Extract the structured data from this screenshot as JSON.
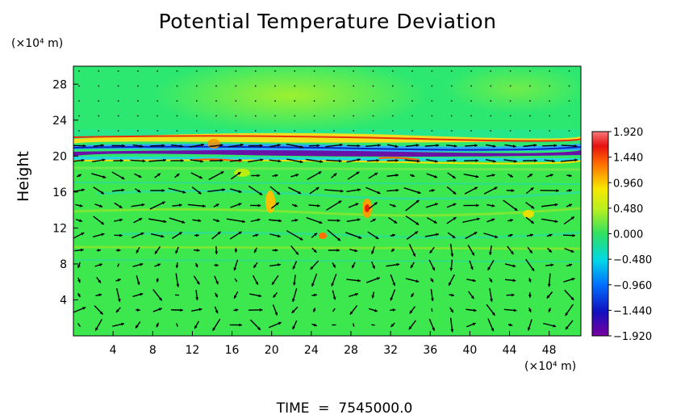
{
  "chart_data": {
    "type": "heatmap",
    "title": "Potential Temperature Deviation",
    "ylabel": "Height",
    "x_unit": "(×10⁴ m)",
    "y_unit": "(×10⁴ m)",
    "x_ticks": [
      4,
      8,
      12,
      16,
      20,
      24,
      28,
      32,
      36,
      40,
      44,
      48
    ],
    "y_ticks": [
      4,
      8,
      12,
      16,
      20,
      24,
      28
    ],
    "xlim": [
      0,
      51.2
    ],
    "ylim": [
      0,
      30
    ],
    "colorbar": {
      "min": -1.92,
      "max": 1.92,
      "tick_values": [
        1.92,
        1.44,
        0.96,
        0.48,
        0.0,
        -0.48,
        -0.96,
        -1.44,
        -1.92
      ],
      "tick_labels": [
        "1.920",
        "1.440",
        "0.960",
        "0.480",
        "0.000",
        "−0.480",
        "−0.960",
        "−1.440",
        "−1.920"
      ]
    },
    "vector_field": true,
    "footer": {
      "label": "TIME",
      "value": "7545000.0"
    }
  }
}
